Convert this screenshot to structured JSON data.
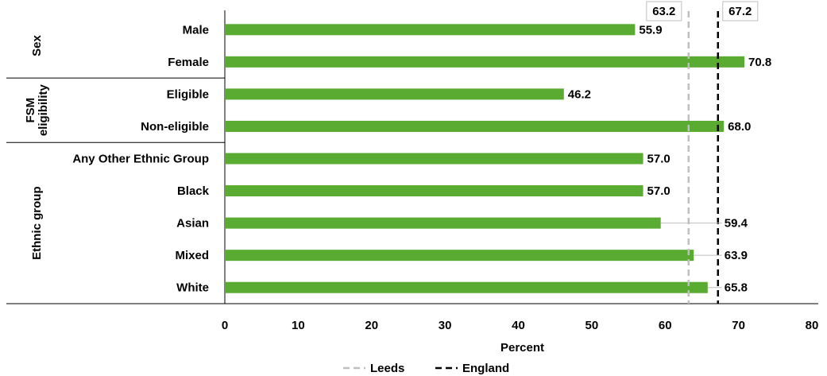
{
  "chart_data": {
    "type": "bar",
    "orientation": "horizontal",
    "title": "",
    "xlabel": "Percent",
    "ylabel": "",
    "xlim": [
      0,
      80
    ],
    "xticks": [
      0,
      10,
      20,
      30,
      40,
      50,
      60,
      70,
      80
    ],
    "grid": false,
    "legend_position": "bottom",
    "groups": [
      {
        "label": "Sex",
        "categories": [
          "Male",
          "Female"
        ]
      },
      {
        "label": "FSM eligibility",
        "label_lines": [
          "FSM",
          "eligibility"
        ],
        "categories": [
          "Eligible",
          "Non-eligible"
        ]
      },
      {
        "label": "Ethnic group",
        "categories": [
          "Any Other Ethnic Group",
          "Black",
          "Asian",
          "Mixed",
          "White"
        ]
      }
    ],
    "categories": [
      "Male",
      "Female",
      "Eligible",
      "Non-eligible",
      "Any Other Ethnic Group",
      "Black",
      "Asian",
      "Mixed",
      "White"
    ],
    "values": [
      55.9,
      70.8,
      46.2,
      68.0,
      57.0,
      57.0,
      59.4,
      63.9,
      65.8
    ],
    "value_labels": [
      "55.9",
      "70.8",
      "46.2",
      "68.0",
      "57.0",
      "57.0",
      "59.4",
      "63.9",
      "65.8"
    ],
    "bar_color": "#5aab32",
    "reference_lines": [
      {
        "name": "Leeds",
        "value": 63.2,
        "label": "63.2",
        "color": "#bfbfbf",
        "style": "dashed"
      },
      {
        "name": "England",
        "value": 67.2,
        "label": "67.2",
        "color": "#000000",
        "style": "dashed"
      }
    ]
  }
}
